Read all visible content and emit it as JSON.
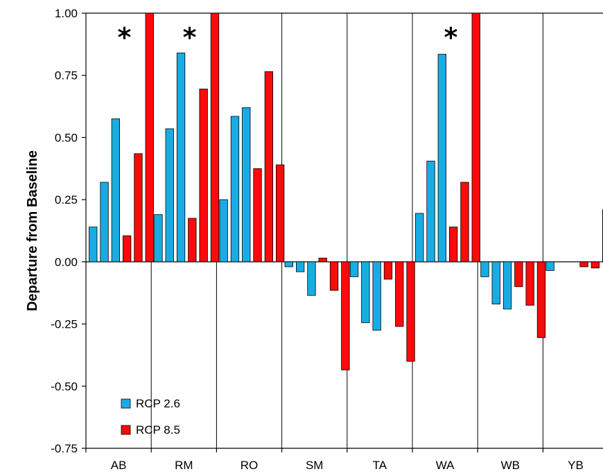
{
  "chart_data": {
    "type": "bar",
    "ylabel": "Departure from Baseline",
    "ylim": [
      -0.75,
      1.0
    ],
    "yticks": [
      "1.00",
      "0.75",
      "0.50",
      "0.25",
      "0.00",
      "-0.25",
      "-0.50",
      "-0.75"
    ],
    "categories": [
      "AB",
      "RM",
      "RO",
      "SM",
      "TA",
      "WA",
      "WB",
      "YB"
    ],
    "bars_per_series": 3,
    "series": [
      {
        "name": "RCP 2.6",
        "color": "#19ACE4",
        "values": [
          [
            0.14,
            0.32,
            0.575
          ],
          [
            0.19,
            0.535,
            0.84
          ],
          [
            0.25,
            0.585,
            0.62
          ],
          [
            -0.02,
            -0.04,
            -0.135
          ],
          [
            -0.06,
            -0.245,
            -0.275
          ],
          [
            0.195,
            0.405,
            0.835
          ],
          [
            -0.06,
            -0.17,
            -0.19
          ],
          [
            -0.035,
            0.0,
            0.0
          ]
        ]
      },
      {
        "name": "RCP 8.5",
        "color": "#F80B0B",
        "values": [
          [
            0.105,
            0.435,
            1.0
          ],
          [
            0.175,
            0.695,
            1.0
          ],
          [
            0.375,
            0.765,
            0.39
          ],
          [
            0.015,
            -0.115,
            -0.435
          ],
          [
            -0.07,
            -0.26,
            -0.4
          ],
          [
            0.14,
            0.32,
            1.0
          ],
          [
            -0.1,
            -0.175,
            -0.305
          ],
          [
            -0.02,
            -0.025,
            0.21
          ]
        ]
      }
    ],
    "annotations": [
      {
        "category": "AB",
        "text": "*"
      },
      {
        "category": "RM",
        "text": "*"
      },
      {
        "category": "WA",
        "text": "*"
      }
    ],
    "legend": {
      "placement": "bottom-left"
    },
    "grid": false
  }
}
